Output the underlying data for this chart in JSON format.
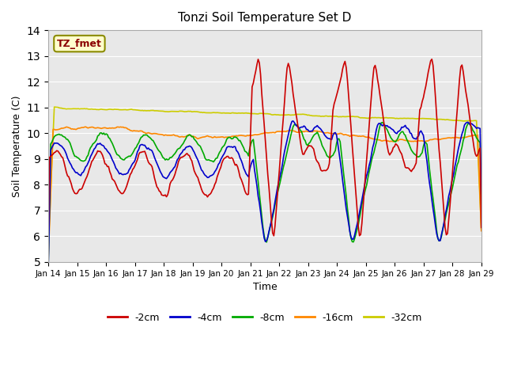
{
  "title": "Tonzi Soil Temperature Set D",
  "xlabel": "Time",
  "ylabel": "Soil Temperature (C)",
  "ylim": [
    5.0,
    14.0
  ],
  "yticks": [
    5.0,
    6.0,
    7.0,
    8.0,
    9.0,
    10.0,
    11.0,
    12.0,
    13.0,
    14.0
  ],
  "xtick_labels": [
    "Jan 14",
    "Jan 15",
    "Jan 16",
    "Jan 17",
    "Jan 18",
    "Jan 19",
    "Jan 20",
    "Jan 21",
    "Jan 22",
    "Jan 23",
    "Jan 24",
    "Jan 25",
    "Jan 26",
    "Jan 27",
    "Jan 28",
    "Jan 29"
  ],
  "annotation": "TZ_fmet",
  "annotation_color": "#8B0000",
  "annotation_bg": "#FFFFCC",
  "line_colors": {
    "-2cm": "#CC0000",
    "-4cm": "#0000CC",
    "-8cm": "#00AA00",
    "-16cm": "#FF8800",
    "-32cm": "#CCCC00"
  },
  "bg_color": "#E8E8E8",
  "grid_color": "#FFFFFF"
}
